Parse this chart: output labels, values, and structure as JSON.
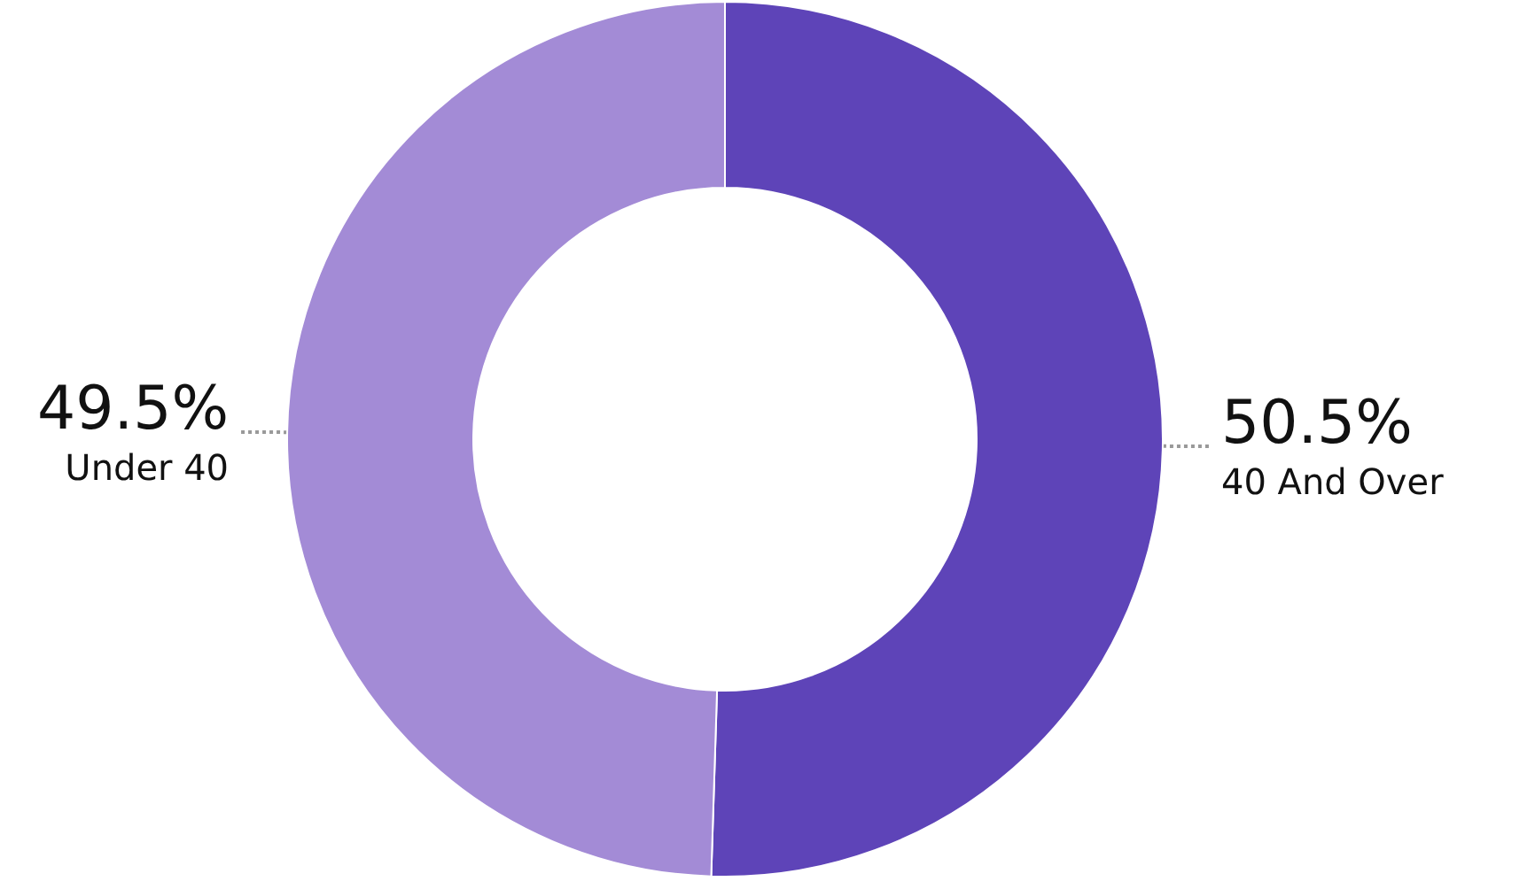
{
  "chart_data": {
    "type": "donut",
    "categories": [
      "40 And Over",
      "Under 40"
    ],
    "values": [
      50.5,
      49.5
    ],
    "value_labels": [
      "50.5%",
      "49.5%"
    ],
    "colors": [
      "#5e44b8",
      "#a38bd6"
    ],
    "legend": false
  }
}
